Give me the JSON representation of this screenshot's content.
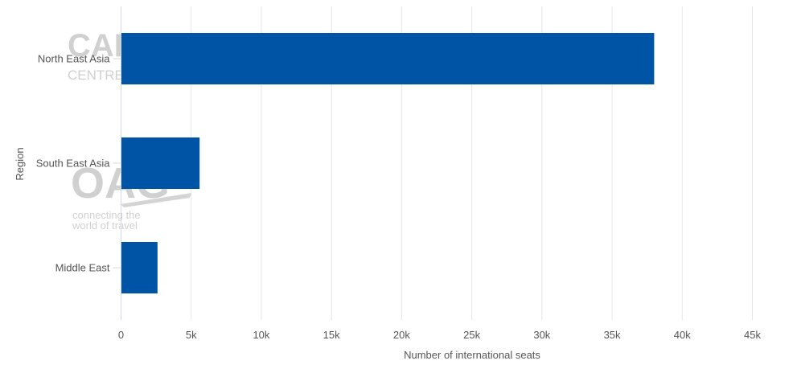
{
  "watermarks": {
    "top_logo": "CAPA",
    "top_logo_sub": "CENTRE",
    "oag_logo": "OAG",
    "oag_tagline_line1": "connecting the",
    "oag_tagline_line2": "world of travel"
  },
  "colors": {
    "bar": "#0054A6",
    "grid": "#e6e6e6",
    "axis_text": "#555555",
    "watermark": "#cccccc"
  },
  "chart_data": {
    "type": "bar",
    "orientation": "horizontal",
    "categories": [
      "North East Asia",
      "South East Asia",
      "Middle East"
    ],
    "values": [
      38000,
      5600,
      2600
    ],
    "xlabel": "Number of international seats",
    "ylabel": "Region",
    "xlim": [
      0,
      45000
    ],
    "x_ticks": [
      0,
      5000,
      10000,
      15000,
      20000,
      25000,
      30000,
      35000,
      40000,
      45000
    ],
    "x_tick_labels": [
      "0",
      "5k",
      "10k",
      "15k",
      "20k",
      "25k",
      "30k",
      "35k",
      "40k",
      "45k"
    ],
    "grid": true,
    "legend": "none"
  }
}
